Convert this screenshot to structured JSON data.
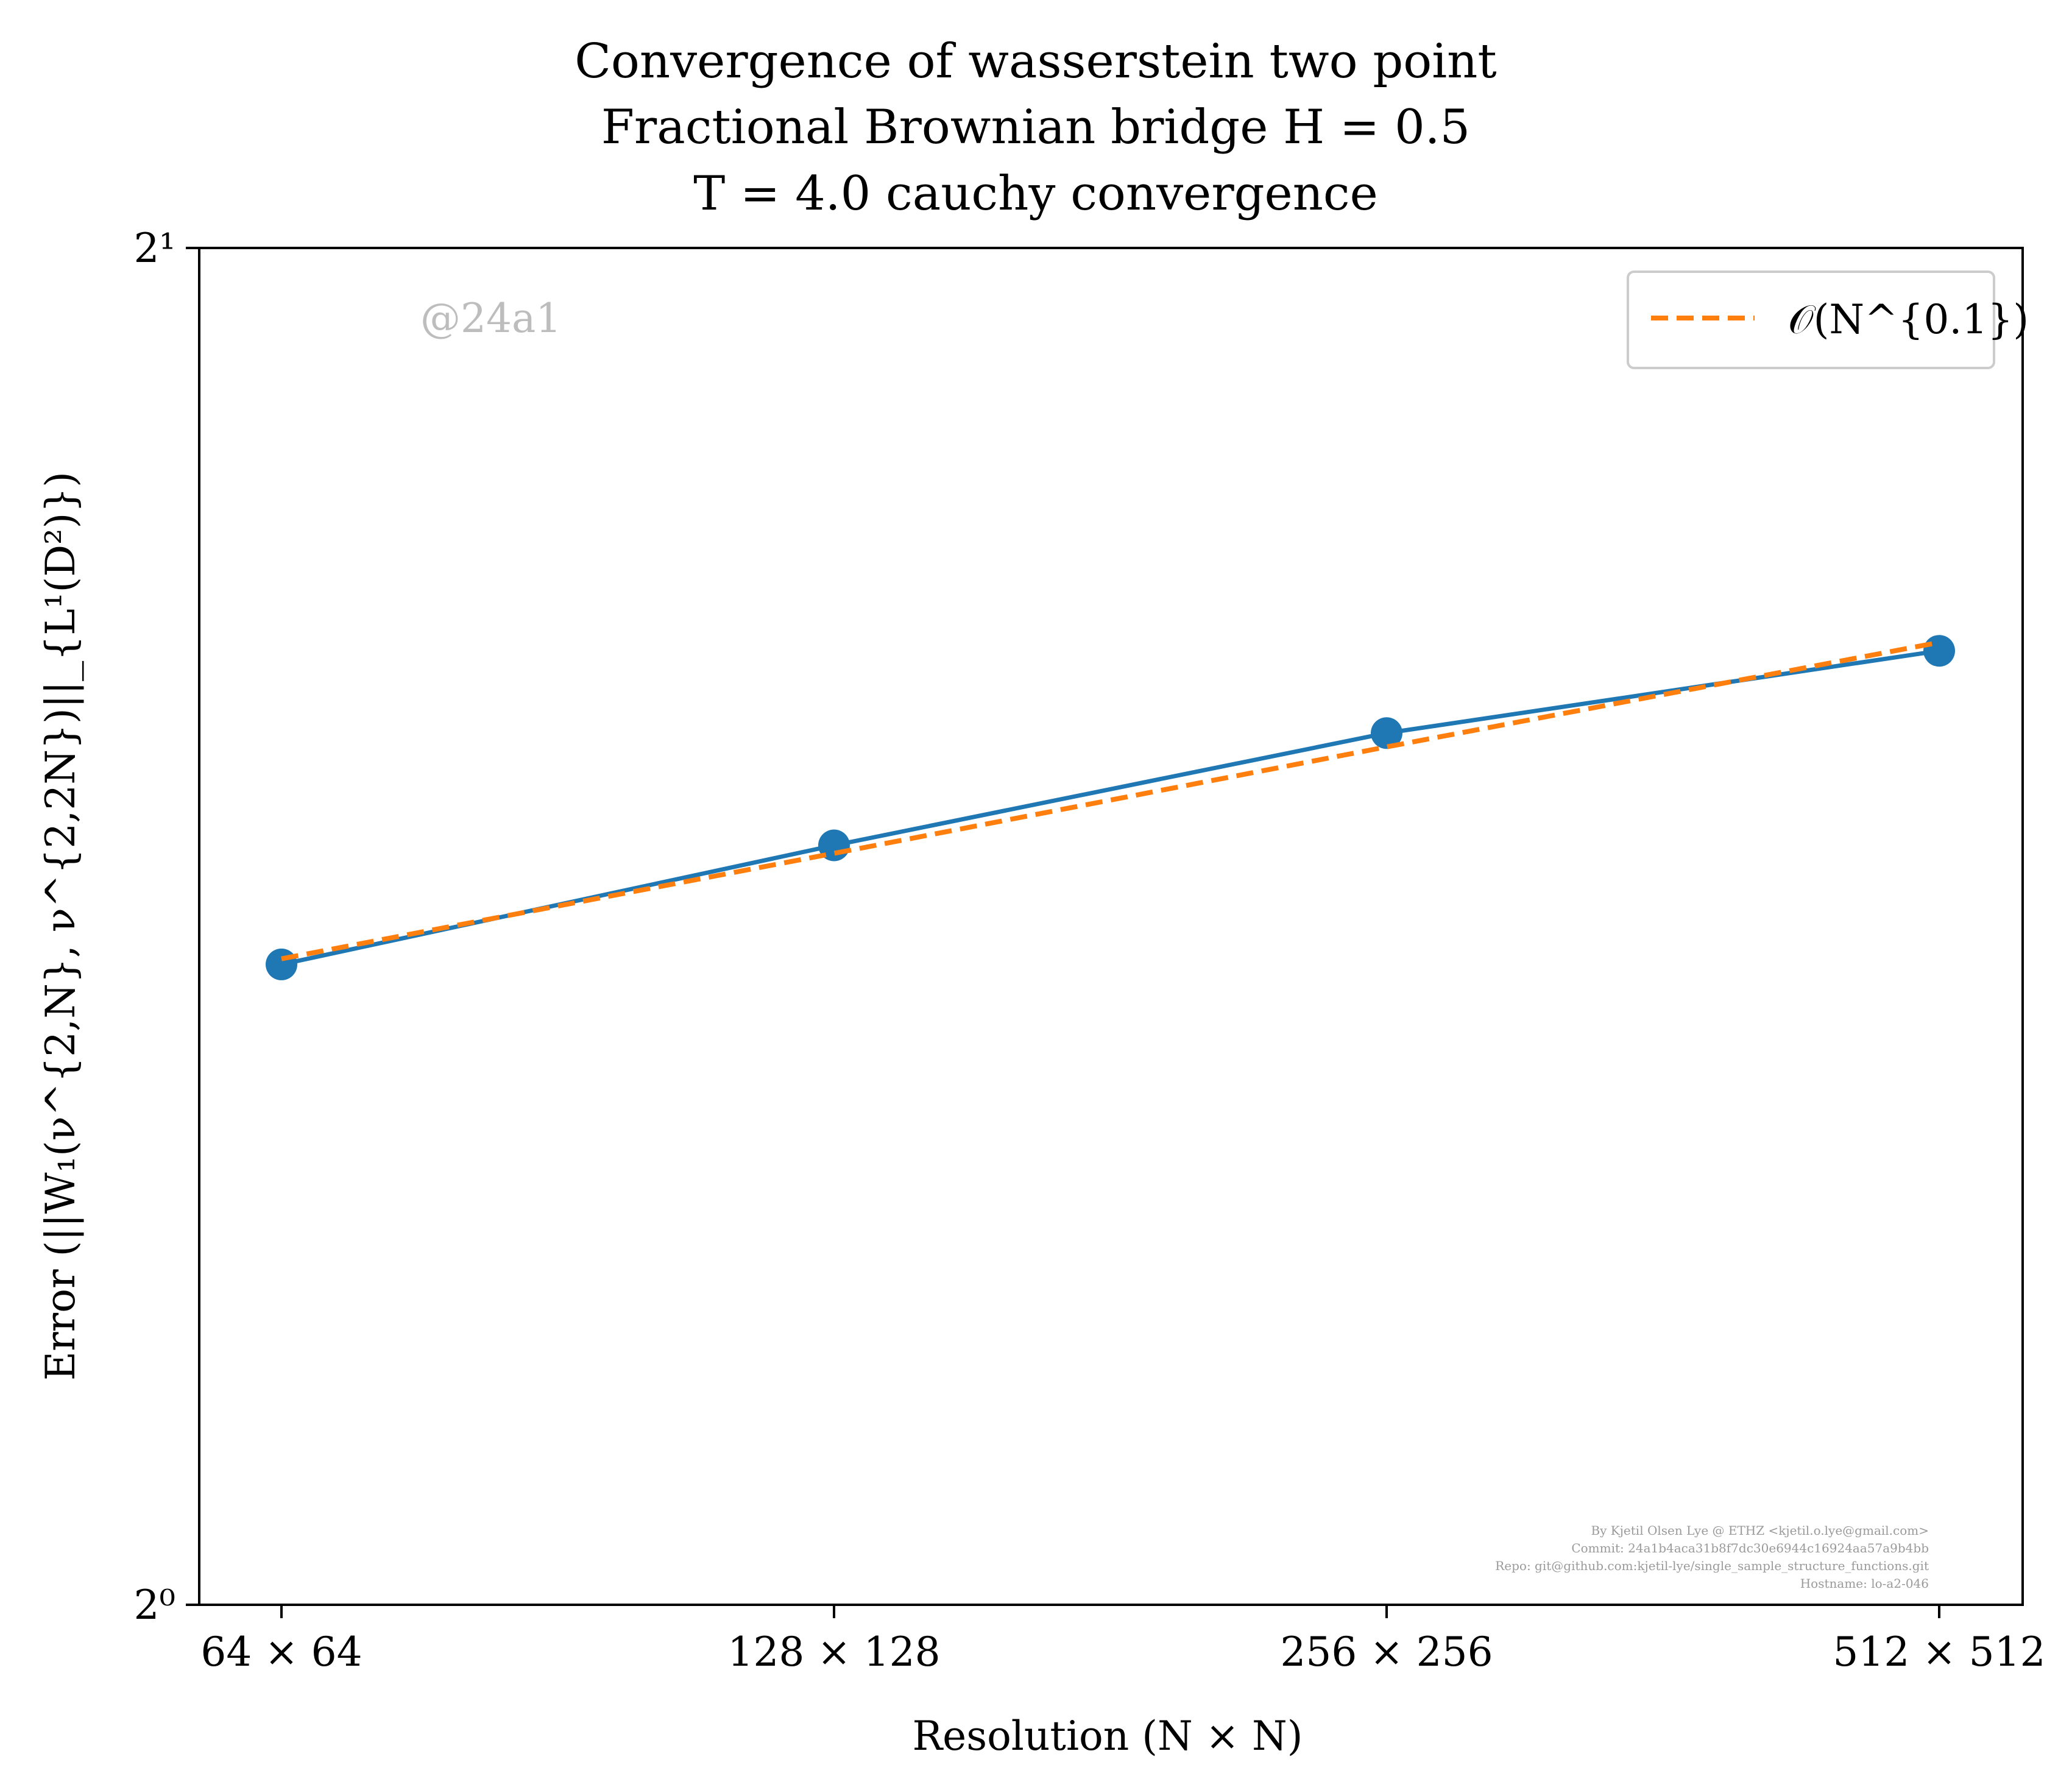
{
  "chart_data": {
    "type": "line",
    "title": [
      "Convergence of wasserstein two point",
      "Fractional Brownian bridge H = 0.5",
      "T = 4.0 cauchy convergence"
    ],
    "xlabel": "Resolution (N × N)",
    "ylabel": "Error (||W₁(ν^{2,N}, ν^{2,2N})||_{L¹(D²)})",
    "x_scale": "log2",
    "y_scale": "log2",
    "ylim": [
      1,
      2
    ],
    "y_tick_labels": [
      "2⁰",
      "2¹"
    ],
    "categories": [
      "64 × 64",
      "128 × 128",
      "256 × 256",
      "512 × 512"
    ],
    "x": [
      64,
      128,
      256,
      512
    ],
    "series": [
      {
        "values": [
          1.387,
          1.474,
          1.561,
          1.628
        ],
        "color": "#1f77b4",
        "style": "solid",
        "marker": "circle"
      },
      {
        "name": "𝒪(N^{0.1})",
        "values": [
          1.391,
          1.468,
          1.55,
          1.635
        ],
        "color": "#ff7f0e",
        "style": "dashed"
      }
    ],
    "legend": {
      "placement": "top-right"
    },
    "grid": false,
    "watermark": "@24a1",
    "credits": [
      "By Kjetil Olsen Lye @ ETHZ <kjetil.o.lye@gmail.com>",
      "Commit: 24a1b4aca31b8f7dc30e6944c16924aa57a9b4bb",
      "Repo: git@github.com:kjetil-lye/single_sample_structure_functions.git",
      "Hostname: lo-a2-046"
    ]
  }
}
